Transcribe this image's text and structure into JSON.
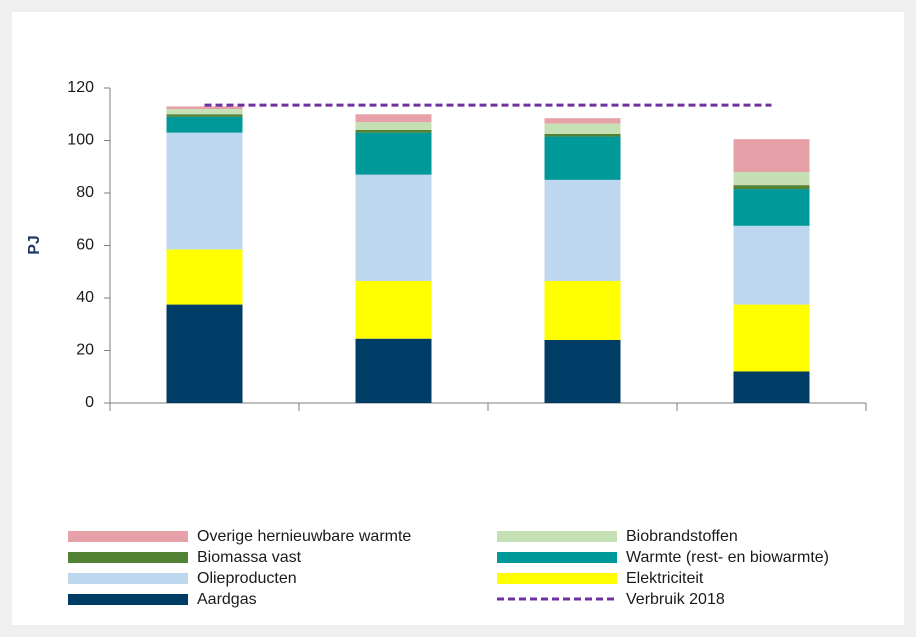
{
  "chart_data": {
    "type": "stacked_bar",
    "ylabel": "PJ",
    "categories": [
      null,
      null,
      null,
      null
    ],
    "series": [
      {
        "name": "Aardgas",
        "color": "#003d66",
        "values": [
          37.5,
          24.5,
          24,
          12
        ]
      },
      {
        "name": "Elektriciteit",
        "color": "#ffff00",
        "values": [
          21,
          22,
          22.5,
          25.5
        ]
      },
      {
        "name": "Olieproducten",
        "color": "#bdd7ee",
        "values": [
          44.5,
          40.5,
          38.5,
          30
        ]
      },
      {
        "name": "Warmte (rest- en biowarmte)",
        "color": "#009999",
        "values": [
          6,
          16,
          16.5,
          14
        ]
      },
      {
        "name": "Biomassa vast",
        "color": "#548235",
        "values": [
          1,
          1,
          1,
          1.5
        ]
      },
      {
        "name": "Biobrandstoffen",
        "color": "#c5e0b4",
        "values": [
          2,
          3,
          4,
          5
        ]
      },
      {
        "name": "Overige hernieuwbare warmte",
        "color": "#e6a0a8",
        "values": [
          1,
          3,
          2,
          12.5
        ]
      }
    ],
    "reference": {
      "name": "Verbruik 2018",
      "color": "#7030a0",
      "value": 113.5
    },
    "ylim": [
      0,
      120
    ],
    "yticks": [
      0,
      20,
      40,
      60,
      80,
      100,
      120
    ]
  }
}
